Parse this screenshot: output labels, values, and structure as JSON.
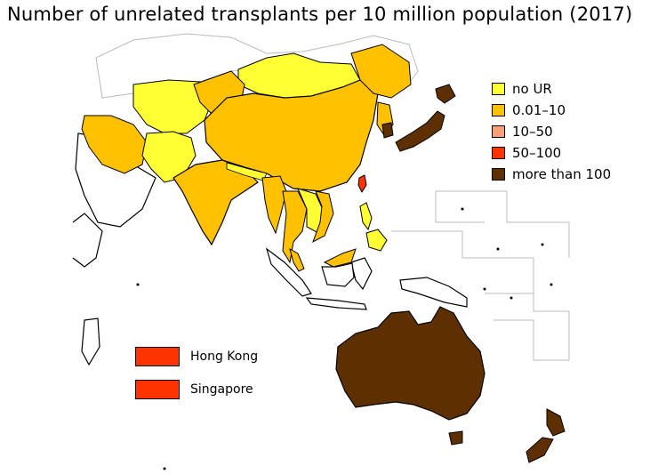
{
  "title": "Number of unrelated transplants per 10 million population (2017)",
  "colors": {
    "no_ur": "#ffff33",
    "low": "#ffc100",
    "mid": "#f9a078",
    "high": "#ff3300",
    "very_high": "#5e3000",
    "no_data": "#ffffff",
    "border_grey": "#bbbbbb"
  },
  "legend": [
    {
      "label": "no UR",
      "color": "#ffff33"
    },
    {
      "label": "0.01–10",
      "color": "#ffc100"
    },
    {
      "label": "10–50",
      "color": "#f9a078"
    },
    {
      "label": "50–100",
      "color": "#ff3300"
    },
    {
      "label": "more than 100",
      "color": "#5e3000"
    }
  ],
  "inset_boxes": [
    {
      "label": "Hong Kong",
      "color": "#ff3300"
    },
    {
      "label": "Singapore",
      "color": "#ff3300"
    }
  ]
}
